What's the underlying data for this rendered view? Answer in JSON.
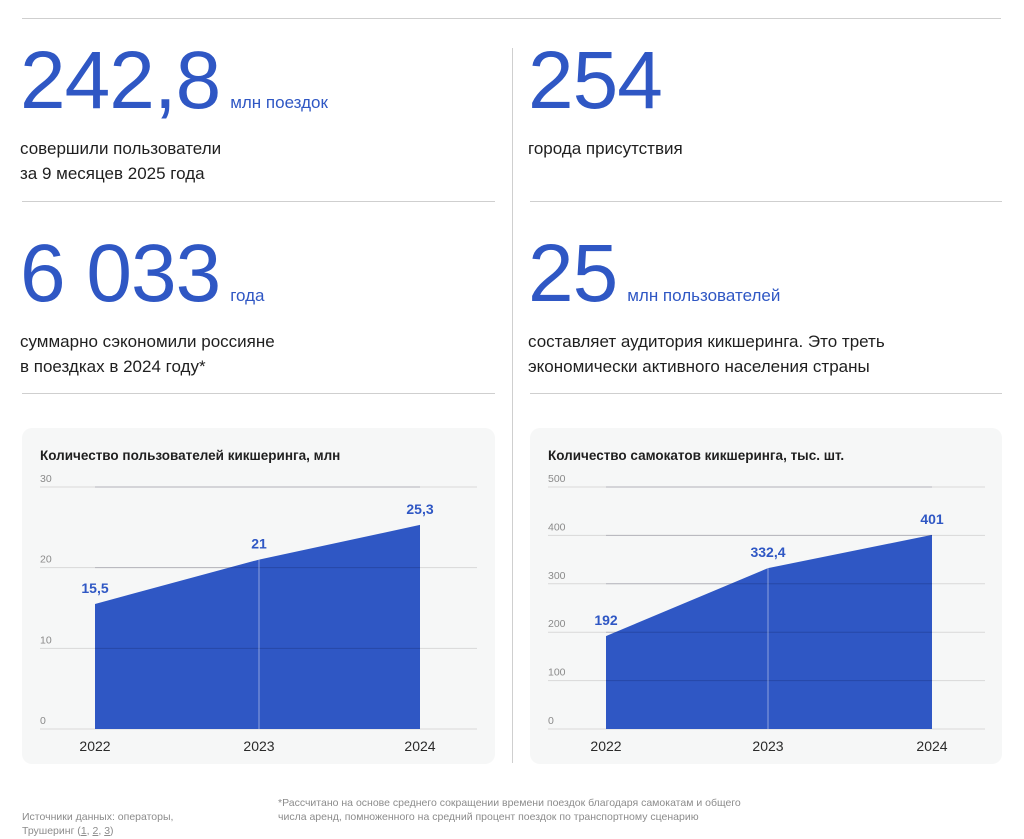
{
  "stats": [
    {
      "value": "242,8",
      "unit": "млн поездок",
      "description": "совершили пользователи\nза 9 месяцев 2025 года"
    },
    {
      "value": "254",
      "unit": "",
      "description": "города присутствия"
    },
    {
      "value": "6 033",
      "unit": "года",
      "description": "суммарно сэкономили россияне\nв поездках в 2024 году*"
    },
    {
      "value": "25",
      "unit": "млн пользователей",
      "description": "составляет аудитория кикшеринга. Это треть\nэкономически активного населения страны"
    }
  ],
  "chart_data": [
    {
      "type": "area",
      "title": "Количество пользователей кикшеринга, млн",
      "categories": [
        "2022",
        "2023",
        "2024"
      ],
      "values": [
        15.5,
        21,
        25.3
      ],
      "value_labels": [
        "15,5",
        "21",
        "25,3"
      ],
      "y_ticks": [
        "0",
        "10",
        "20",
        "30"
      ],
      "ylim": [
        0,
        30
      ],
      "grid": true,
      "color": "#2f57c4"
    },
    {
      "type": "area",
      "title": "Количество самокатов кикшеринга, тыс. шт.",
      "categories": [
        "2022",
        "2023",
        "2024"
      ],
      "values": [
        192,
        332.4,
        401
      ],
      "value_labels": [
        "192",
        "332,4",
        "401"
      ],
      "y_ticks": [
        "0",
        "100",
        "200",
        "300",
        "400",
        "500"
      ],
      "ylim": [
        0,
        500
      ],
      "grid": true,
      "color": "#2f57c4"
    }
  ],
  "footer": {
    "sources_text": "Источники данных: операторы,\nТрушеринг (",
    "links": [
      "1",
      "2",
      "3"
    ],
    "link_separator": ", ",
    "sources_end": ")",
    "note": "*Рассчитано на основе среднего сокращении времени поездок благодаря самокатам и общего\nчисла аренд, помноженного на средний процент поездок по транспортному сценарию"
  }
}
